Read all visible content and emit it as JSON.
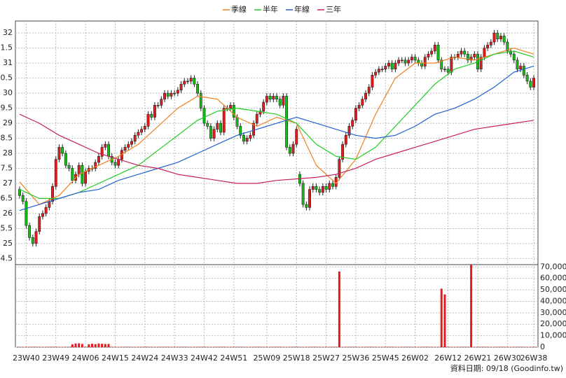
{
  "chart_data": {
    "type": "candlestick",
    "source_note": "資料日期: 09/18  (Goodinfo.tw)",
    "categories": [
      null,
      null,
      "23W40",
      null,
      null,
      null,
      null,
      null,
      null,
      null,
      null,
      "23W49",
      null,
      null,
      null,
      null,
      null,
      null,
      null,
      null,
      "24W06",
      null,
      null,
      null,
      null,
      null,
      null,
      null,
      null,
      "24W15",
      null,
      null,
      null,
      null,
      null,
      null,
      null,
      null,
      "24W24",
      null,
      null,
      null,
      null,
      null,
      null,
      null,
      null,
      "24W33",
      null,
      null,
      null,
      null,
      null,
      null,
      null,
      null,
      "24W42",
      null,
      null,
      null,
      null,
      null,
      null,
      null,
      null,
      "24W51",
      null,
      null,
      null,
      null,
      null,
      null,
      null,
      null,
      null,
      "25W09",
      null,
      null,
      null,
      null,
      null,
      null,
      null,
      null,
      "25W18",
      null,
      null,
      null,
      null,
      null,
      null,
      null,
      null,
      "25W27",
      null,
      null,
      null,
      null,
      null,
      null,
      null,
      null,
      "25W36",
      null,
      null,
      null,
      null,
      null,
      null,
      null,
      null,
      "25W45",
      null,
      null,
      null,
      null,
      null,
      null,
      null,
      null,
      "26W02",
      null,
      null,
      null,
      null,
      null,
      null,
      null,
      null,
      null,
      "26W12",
      null,
      null,
      null,
      null,
      null,
      null,
      null,
      null,
      "26W21",
      null,
      null,
      null,
      null,
      null,
      null,
      null,
      null,
      "26W30",
      null,
      null,
      null,
      null,
      null,
      null,
      null,
      "26W38"
    ],
    "open": [
      26.8,
      26.6,
      26.4,
      25.6,
      25.2,
      25.0,
      25.4,
      25.9,
      26.0,
      26.2,
      26.4,
      26.9,
      27.8,
      28.2,
      28.0,
      27.6,
      27.5,
      27.1,
      27.3,
      27.6,
      27.0,
      27.4,
      27.5,
      27.5,
      27.7,
      27.9,
      28.2,
      28.3,
      27.9,
      27.7,
      27.6,
      27.8,
      28.1,
      28.2,
      28.3,
      28.4,
      28.6,
      28.7,
      28.8,
      28.9,
      29.3,
      29.2,
      29.6,
      29.6,
      29.8,
      30.0,
      29.9,
      30.0,
      30.0,
      30.1,
      30.3,
      30.4,
      30.4,
      30.5,
      30.3,
      30.0,
      29.5,
      29.0,
      28.9,
      28.5,
      28.8,
      29.0,
      28.7,
      29.5,
      29.5,
      29.6,
      29.2,
      28.9,
      28.6,
      28.4,
      28.5,
      28.6,
      29.0,
      29.3,
      29.4,
      29.7,
      29.9,
      29.8,
      29.9,
      29.8,
      29.6,
      29.9,
      28.2,
      28.0,
      28.3,
      27.3,
      27.0,
      26.3,
      26.2,
      26.8,
      26.9,
      26.8,
      26.7,
      26.9,
      26.8,
      27.0,
      26.9,
      27.2,
      27.8,
      28.3,
      28.6,
      28.9,
      29.1,
      29.5,
      29.6,
      29.8,
      30.0,
      30.2,
      30.6,
      30.7,
      30.8,
      30.8,
      30.9,
      31.0,
      30.8,
      31.0,
      31.1,
      31.1,
      31.0,
      31.1,
      31.2,
      31.1,
      31.0,
      30.9,
      31.2,
      31.3,
      31.4,
      31.6,
      31.1,
      30.8,
      30.8,
      30.7,
      31.2,
      31.2,
      31.3,
      31.4,
      31.3,
      31.1,
      31.2,
      31.3,
      30.8,
      31.2,
      31.5,
      31.6,
      31.7,
      32.0,
      31.8,
      31.9,
      31.7,
      31.4,
      31.3,
      31.1,
      30.8,
      30.9,
      30.6,
      30.4,
      30.2
    ],
    "close": [
      26.6,
      26.4,
      25.6,
      25.2,
      25.0,
      25.4,
      25.9,
      26.0,
      26.2,
      26.4,
      26.9,
      27.8,
      28.2,
      28.0,
      27.6,
      27.5,
      27.1,
      27.3,
      27.6,
      27.0,
      27.4,
      27.5,
      27.5,
      27.7,
      27.9,
      28.2,
      28.3,
      27.9,
      27.7,
      27.6,
      27.8,
      28.1,
      28.2,
      28.3,
      28.4,
      28.6,
      28.7,
      28.8,
      28.9,
      29.3,
      29.2,
      29.6,
      29.6,
      29.8,
      30.0,
      29.9,
      30.0,
      30.0,
      30.1,
      30.3,
      30.4,
      30.4,
      30.5,
      30.3,
      30.0,
      29.5,
      29.0,
      28.9,
      28.5,
      28.8,
      29.0,
      28.7,
      29.5,
      29.5,
      29.6,
      29.2,
      28.9,
      28.6,
      28.4,
      28.5,
      28.6,
      29.0,
      29.3,
      29.4,
      29.7,
      29.9,
      29.8,
      29.9,
      29.8,
      29.6,
      29.9,
      28.2,
      28.0,
      28.3,
      28.8,
      27.0,
      26.3,
      26.2,
      26.8,
      26.9,
      26.8,
      26.7,
      26.9,
      26.8,
      27.0,
      26.9,
      27.2,
      27.8,
      28.3,
      28.6,
      28.9,
      29.1,
      29.5,
      29.6,
      29.8,
      30.0,
      30.2,
      30.6,
      30.7,
      30.8,
      30.8,
      30.9,
      31.0,
      30.8,
      31.0,
      31.1,
      31.1,
      31.0,
      31.1,
      31.2,
      31.1,
      31.0,
      30.9,
      31.2,
      31.3,
      31.4,
      31.6,
      31.1,
      30.8,
      30.8,
      30.7,
      31.2,
      31.2,
      31.3,
      31.4,
      31.3,
      31.1,
      31.2,
      31.3,
      30.8,
      31.2,
      31.5,
      31.6,
      31.7,
      32.0,
      31.8,
      31.9,
      31.7,
      31.4,
      31.3,
      31.1,
      30.8,
      30.9,
      30.6,
      30.4,
      30.2,
      30.5
    ],
    "high": [
      26.9,
      26.7,
      26.5,
      25.7,
      25.3,
      25.5,
      26.0,
      26.1,
      26.3,
      26.5,
      27.0,
      27.9,
      28.3,
      28.3,
      28.1,
      27.7,
      27.6,
      27.4,
      27.7,
      27.7,
      27.5,
      27.6,
      27.6,
      27.8,
      28.0,
      28.3,
      28.4,
      28.4,
      28.0,
      27.8,
      27.9,
      28.2,
      28.3,
      28.4,
      28.5,
      28.7,
      28.8,
      28.9,
      29.0,
      29.4,
      29.4,
      29.7,
      29.7,
      29.9,
      30.1,
      30.1,
      30.1,
      30.1,
      30.2,
      30.4,
      30.5,
      30.5,
      30.6,
      30.6,
      30.4,
      30.1,
      29.6,
      29.1,
      29.0,
      28.9,
      29.1,
      29.1,
      29.6,
      29.6,
      29.7,
      29.7,
      29.3,
      29.0,
      28.7,
      28.6,
      28.7,
      29.1,
      29.4,
      29.5,
      29.8,
      30.0,
      30.0,
      30.0,
      30.0,
      29.9,
      30.0,
      30.0,
      28.3,
      28.4,
      28.9,
      27.4,
      27.1,
      26.4,
      26.9,
      27.0,
      27.0,
      26.9,
      27.0,
      27.0,
      27.1,
      27.1,
      27.3,
      27.9,
      28.4,
      28.7,
      29.0,
      29.2,
      29.6,
      29.7,
      29.9,
      30.1,
      30.3,
      30.7,
      30.8,
      30.9,
      30.9,
      31.0,
      31.1,
      31.1,
      31.1,
      31.2,
      31.2,
      31.2,
      31.2,
      31.3,
      31.3,
      31.2,
      31.1,
      31.3,
      31.4,
      31.5,
      31.7,
      31.7,
      31.2,
      30.9,
      30.9,
      31.3,
      31.3,
      31.4,
      31.5,
      31.5,
      31.4,
      31.3,
      31.4,
      31.4,
      31.3,
      31.6,
      31.7,
      31.8,
      32.1,
      32.1,
      32.0,
      32.0,
      31.8,
      31.5,
      31.4,
      31.2,
      31.0,
      31.0,
      30.7,
      30.5,
      30.6
    ],
    "low": [
      26.5,
      26.3,
      25.5,
      25.1,
      24.9,
      24.9,
      25.3,
      25.8,
      25.9,
      26.1,
      26.3,
      26.8,
      27.7,
      27.9,
      27.5,
      27.4,
      27.0,
      27.0,
      27.2,
      26.9,
      26.9,
      27.3,
      27.4,
      27.4,
      27.6,
      27.8,
      28.1,
      27.8,
      27.6,
      27.5,
      27.5,
      27.7,
      28.0,
      28.1,
      28.2,
      28.3,
      28.5,
      28.6,
      28.7,
      28.8,
      29.1,
      29.1,
      29.5,
      29.5,
      29.7,
      29.8,
      29.8,
      29.9,
      29.9,
      30.0,
      30.2,
      30.3,
      30.3,
      30.2,
      29.9,
      29.4,
      28.9,
      28.8,
      28.4,
      28.4,
      28.7,
      28.6,
      28.6,
      29.4,
      29.4,
      29.1,
      28.8,
      28.5,
      28.3,
      28.3,
      28.4,
      28.5,
      28.9,
      29.2,
      29.3,
      29.6,
      29.7,
      29.7,
      29.7,
      29.5,
      29.5,
      28.1,
      27.9,
      27.9,
      28.2,
      26.9,
      26.2,
      26.1,
      26.1,
      26.7,
      26.7,
      26.6,
      26.6,
      26.7,
      26.7,
      26.8,
      26.8,
      27.1,
      27.7,
      28.2,
      28.5,
      28.8,
      29.0,
      29.4,
      29.5,
      29.7,
      29.9,
      30.1,
      30.5,
      30.6,
      30.7,
      30.7,
      30.8,
      30.7,
      30.7,
      30.9,
      31.0,
      30.9,
      30.9,
      31.0,
      31.0,
      30.9,
      30.8,
      30.8,
      31.1,
      31.2,
      31.3,
      31.0,
      30.7,
      30.7,
      30.6,
      30.6,
      31.1,
      31.1,
      31.2,
      31.2,
      31.0,
      31.0,
      31.1,
      30.7,
      30.7,
      31.1,
      31.4,
      31.5,
      31.6,
      31.7,
      31.7,
      31.6,
      31.3,
      31.2,
      31.0,
      30.7,
      30.7,
      30.5,
      30.3,
      30.1,
      30.1
    ],
    "volume": [
      300,
      300,
      300,
      300,
      300,
      300,
      300,
      300,
      300,
      300,
      300,
      300,
      300,
      300,
      300,
      300,
      2500,
      3200,
      3400,
      2800,
      300,
      2600,
      3000,
      2700,
      3200,
      3000,
      2800,
      2900,
      300,
      300,
      300,
      300,
      300,
      300,
      300,
      300,
      300,
      300,
      300,
      300,
      300,
      300,
      300,
      300,
      300,
      300,
      300,
      300,
      300,
      300,
      300,
      300,
      300,
      300,
      300,
      300,
      300,
      300,
      300,
      300,
      300,
      300,
      300,
      300,
      300,
      300,
      300,
      300,
      300,
      300,
      300,
      300,
      300,
      300,
      300,
      300,
      300,
      300,
      300,
      300,
      300,
      300,
      300,
      300,
      300,
      300,
      300,
      300,
      300,
      300,
      300,
      300,
      300,
      300,
      300,
      300,
      300,
      66000,
      300,
      300,
      300,
      300,
      300,
      300,
      300,
      300,
      300,
      300,
      300,
      300,
      300,
      300,
      300,
      300,
      300,
      300,
      300,
      300,
      300,
      300,
      300,
      300,
      300,
      300,
      300,
      300,
      300,
      300,
      51000,
      46000,
      300,
      300,
      300,
      300,
      300,
      300,
      300,
      72000,
      300,
      300,
      300,
      300,
      300,
      300,
      300,
      300,
      300,
      300,
      300,
      300,
      300,
      300,
      300,
      300,
      300,
      300,
      300
    ],
    "up_color": "#e8191b",
    "down_color": "#11c011",
    "volume_color": "#e8191b",
    "lines": [
      {
        "name": "季線",
        "color": "#f08020",
        "x": [
          0,
          6,
          12,
          18,
          24,
          30,
          36,
          42,
          48,
          54,
          60,
          66,
          72,
          78,
          84,
          90,
          96,
          102,
          108,
          114,
          120,
          126,
          132,
          138,
          144,
          150,
          156
        ],
        "values": [
          27.05,
          26.3,
          26.6,
          27.3,
          27.6,
          27.9,
          28.3,
          28.9,
          29.5,
          29.9,
          29.8,
          29.2,
          28.9,
          29.2,
          29.0,
          27.6,
          27.0,
          27.8,
          29.3,
          30.5,
          31.0,
          31.0,
          31.2,
          31.1,
          31.3,
          31.5,
          31.3
        ]
      },
      {
        "name": "半年",
        "color": "#22cc22",
        "x": [
          0,
          6,
          12,
          18,
          24,
          30,
          36,
          42,
          48,
          54,
          60,
          66,
          72,
          78,
          84,
          90,
          96,
          102,
          108,
          114,
          120,
          126,
          132,
          138,
          144,
          150,
          156
        ],
        "values": [
          26.8,
          26.5,
          26.5,
          26.7,
          27.0,
          27.3,
          27.6,
          28.1,
          28.6,
          29.1,
          29.4,
          29.5,
          29.4,
          29.3,
          29.0,
          28.3,
          27.9,
          27.8,
          28.2,
          28.9,
          29.6,
          30.3,
          30.8,
          31.0,
          31.3,
          31.4,
          31.2
        ]
      },
      {
        "name": "年線",
        "color": "#2060d0",
        "x": [
          0,
          6,
          12,
          18,
          24,
          30,
          36,
          42,
          48,
          54,
          60,
          66,
          72,
          78,
          84,
          90,
          96,
          102,
          108,
          114,
          120,
          126,
          132,
          138,
          144,
          150,
          156
        ],
        "values": [
          26.1,
          26.3,
          26.5,
          26.7,
          26.8,
          27.1,
          27.3,
          27.5,
          27.7,
          28.0,
          28.3,
          28.6,
          28.8,
          29.0,
          29.2,
          29.0,
          28.8,
          28.6,
          28.5,
          28.6,
          28.9,
          29.3,
          29.5,
          29.8,
          30.2,
          30.7,
          30.9
        ]
      },
      {
        "name": "三年",
        "color": "#c8205a",
        "x": [
          0,
          6,
          12,
          18,
          24,
          30,
          36,
          42,
          48,
          54,
          60,
          66,
          72,
          78,
          84,
          90,
          96,
          102,
          108,
          114,
          120,
          126,
          132,
          138,
          144,
          150,
          156
        ],
        "values": [
          29.3,
          29.0,
          28.6,
          28.3,
          28.0,
          27.8,
          27.6,
          27.5,
          27.3,
          27.2,
          27.1,
          27.0,
          27.0,
          27.1,
          27.15,
          27.2,
          27.3,
          27.5,
          27.8,
          28.0,
          28.2,
          28.4,
          28.6,
          28.8,
          28.9,
          29.0,
          29.1
        ]
      }
    ],
    "ylim": [
      24.3,
      32.4
    ],
    "yticks": [
      32,
      {
        "value": 31.5,
        "label": "1.5"
      },
      31,
      {
        "value": 30.5,
        "label": "0.5"
      },
      30,
      {
        "value": 29.5,
        "label": "9.5"
      },
      29,
      {
        "value": 28.5,
        "label": "8.5"
      },
      28,
      {
        "value": 27.5,
        "label": "7.5"
      },
      27,
      {
        "value": 26.5,
        "label": "6.5"
      },
      26,
      {
        "value": 25.5,
        "label": "5.5"
      },
      25,
      {
        "value": 24.5,
        "label": "4.5"
      }
    ],
    "y2lim": [
      0,
      72000
    ],
    "y2ticks": [
      {
        "value": 70000,
        "label": "70,000"
      },
      {
        "value": 60000,
        "label": "60,000"
      },
      {
        "value": 50000,
        "label": "50,000"
      },
      {
        "value": 40000,
        "label": "40,000"
      },
      {
        "value": 30000,
        "label": "30,000"
      },
      {
        "value": 20000,
        "label": "20,000"
      },
      {
        "value": 10000,
        "label": "10,000"
      },
      0
    ],
    "grid": true
  }
}
